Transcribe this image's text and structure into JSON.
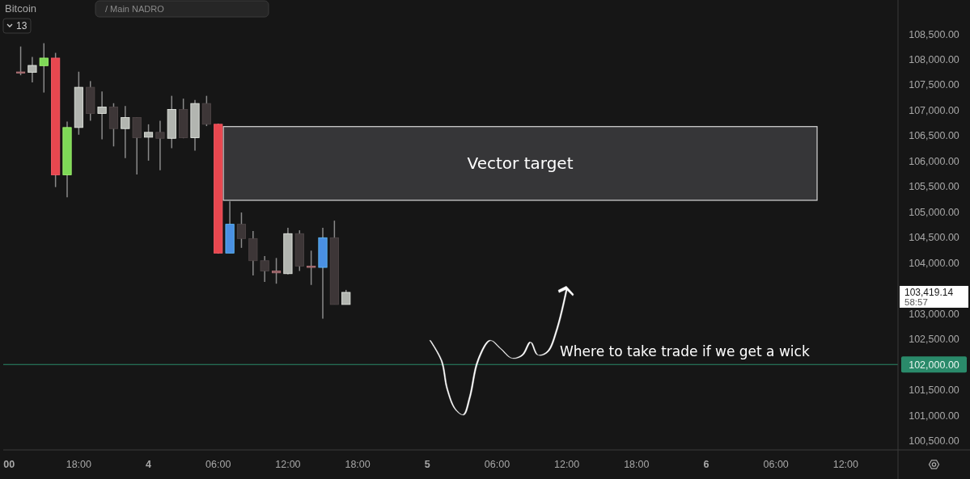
{
  "chart_data": {
    "type": "candlestick",
    "title": "Bitcoin",
    "categories": [
      "00",
      null,
      null,
      null,
      null,
      null,
      "18:00",
      null,
      null,
      null,
      null,
      null,
      "4",
      null,
      null,
      null,
      null,
      null,
      "06:00",
      null,
      null,
      null,
      null,
      null,
      "12:00",
      null,
      null,
      null,
      null,
      null,
      "18:00",
      null,
      null,
      null,
      null,
      null,
      "5",
      null,
      null,
      null,
      null,
      null,
      "06:00",
      null,
      null,
      null,
      null,
      null,
      "12:00",
      null,
      null,
      null,
      null,
      null,
      "18:00",
      null,
      null,
      null,
      null,
      null,
      "6",
      null,
      null,
      null,
      null,
      null,
      "06:00",
      null,
      null,
      null,
      null,
      null,
      "12:00",
      null,
      null,
      null,
      null
    ],
    "ohlc": [
      null,
      [
        107755,
        108255,
        107690,
        107750
      ],
      [
        107746,
        108050,
        107550,
        107883
      ],
      [
        107878,
        108320,
        107350,
        108027
      ],
      [
        108027,
        108130,
        105490,
        105731
      ],
      [
        105731,
        106780,
        105290,
        106662
      ],
      [
        106662,
        107760,
        106520,
        107453
      ],
      [
        107453,
        107575,
        106795,
        106938
      ],
      [
        106938,
        107370,
        106430,
        107065
      ],
      [
        107065,
        107140,
        106290,
        106640
      ],
      [
        106640,
        107085,
        106060,
        106858
      ],
      [
        106858,
        106858,
        105740,
        106460
      ],
      [
        106471,
        106725,
        106010,
        106567
      ],
      [
        106567,
        106795,
        105820,
        106449
      ],
      [
        106449,
        107285,
        106255,
        107018
      ],
      [
        107018,
        107230,
        106450,
        106460
      ],
      [
        106460,
        107205,
        106205,
        107134
      ],
      [
        107134,
        107285,
        106690,
        106726
      ],
      [
        106726,
        106740,
        104180,
        104192
      ],
      [
        104192,
        105210,
        104192,
        104759
      ],
      [
        104759,
        104990,
        104295,
        104478
      ],
      [
        104478,
        104625,
        103750,
        104042
      ],
      [
        104042,
        104135,
        103625,
        103841
      ],
      [
        103841,
        104095,
        103590,
        103803
      ],
      [
        103787,
        104690,
        103770,
        104574
      ],
      [
        104574,
        104640,
        103840,
        103936
      ],
      [
        103936,
        104240,
        103565,
        103910
      ],
      [
        103910,
        104690,
        102900,
        104494
      ],
      [
        104494,
        104830,
        103181,
        103181
      ],
      [
        103181,
        103468,
        103181,
        103419
      ],
      null,
      null,
      null,
      null,
      null,
      null,
      null,
      null,
      null,
      null,
      null,
      null,
      null,
      null,
      null,
      null,
      null,
      null,
      null,
      null,
      null,
      null,
      null,
      null,
      null,
      null,
      null,
      null,
      null,
      null,
      null,
      null,
      null,
      null,
      null,
      null,
      null,
      null,
      null,
      null,
      null,
      null,
      null,
      null,
      null,
      null,
      null
    ],
    "colors": [
      null,
      "#8a5a5e",
      "#b2b5b0",
      "#7ed957",
      "#e8474f",
      "#7ed957",
      "#b2b5b0",
      "#3d3637",
      "#b2b5b0",
      "#3d3637",
      "#b2b5b0",
      "#3d3637",
      "#b2b5b0",
      "#3d3637",
      "#b2b5b0",
      "#3d3637",
      "#b2b5b0",
      "#3d3637",
      "#e8474f",
      "#4a90e2",
      "#3d3637",
      "#3d3637",
      "#3d3637",
      "#8a5a5e",
      "#b2b5b0",
      "#3d3637",
      "#8a5a5e",
      "#4a90e2",
      "#3d3637",
      "#b2b5b0",
      null,
      null,
      null,
      null,
      null,
      null,
      null,
      null,
      null,
      null,
      null,
      null,
      null,
      null,
      null,
      null,
      null,
      null,
      null,
      null,
      null,
      null,
      null,
      null,
      null,
      null,
      null,
      null,
      null,
      null,
      null,
      null,
      null,
      null,
      null,
      null,
      null,
      null,
      null,
      null,
      null,
      null,
      null,
      null,
      null,
      null,
      null
    ],
    "ylim": [
      100320,
      109170
    ],
    "yticks": [
      {
        "value": 100500,
        "label": "100,500.00"
      },
      {
        "value": 101000,
        "label": "101,000.00"
      },
      {
        "value": 101500,
        "label": "101,500.00"
      },
      {
        "value": 102500,
        "label": "102,500.00"
      },
      {
        "value": 103000,
        "label": "103,000.00"
      },
      {
        "value": 104000,
        "label": "104,000.00"
      },
      {
        "value": 104500,
        "label": "104,500.00"
      },
      {
        "value": 105000,
        "label": "105,000.00"
      },
      {
        "value": 105500,
        "label": "105,500.00"
      },
      {
        "value": 106000,
        "label": "106,000.00"
      },
      {
        "value": 106500,
        "label": "106,500.00"
      },
      {
        "value": 107000,
        "label": "107,000.00"
      },
      {
        "value": 107500,
        "label": "107,500.00"
      },
      {
        "value": 108000,
        "label": "108,000.00"
      },
      {
        "value": 108500,
        "label": "108,500.00"
      }
    ],
    "ref_lines": [
      {
        "axis": "y",
        "value": 102000,
        "label": "102,000.00",
        "color": "#2a8a6a"
      }
    ],
    "bands": [
      {
        "axis": "y",
        "from": 105230,
        "to": 106680,
        "label": "Vector target",
        "color": "#3a3a3c"
      }
    ],
    "annotations": [
      "103,419.14",
      "58:57",
      "Where to take trade if we get a wick",
      "13",
      "/ Main NADRO"
    ]
  }
}
